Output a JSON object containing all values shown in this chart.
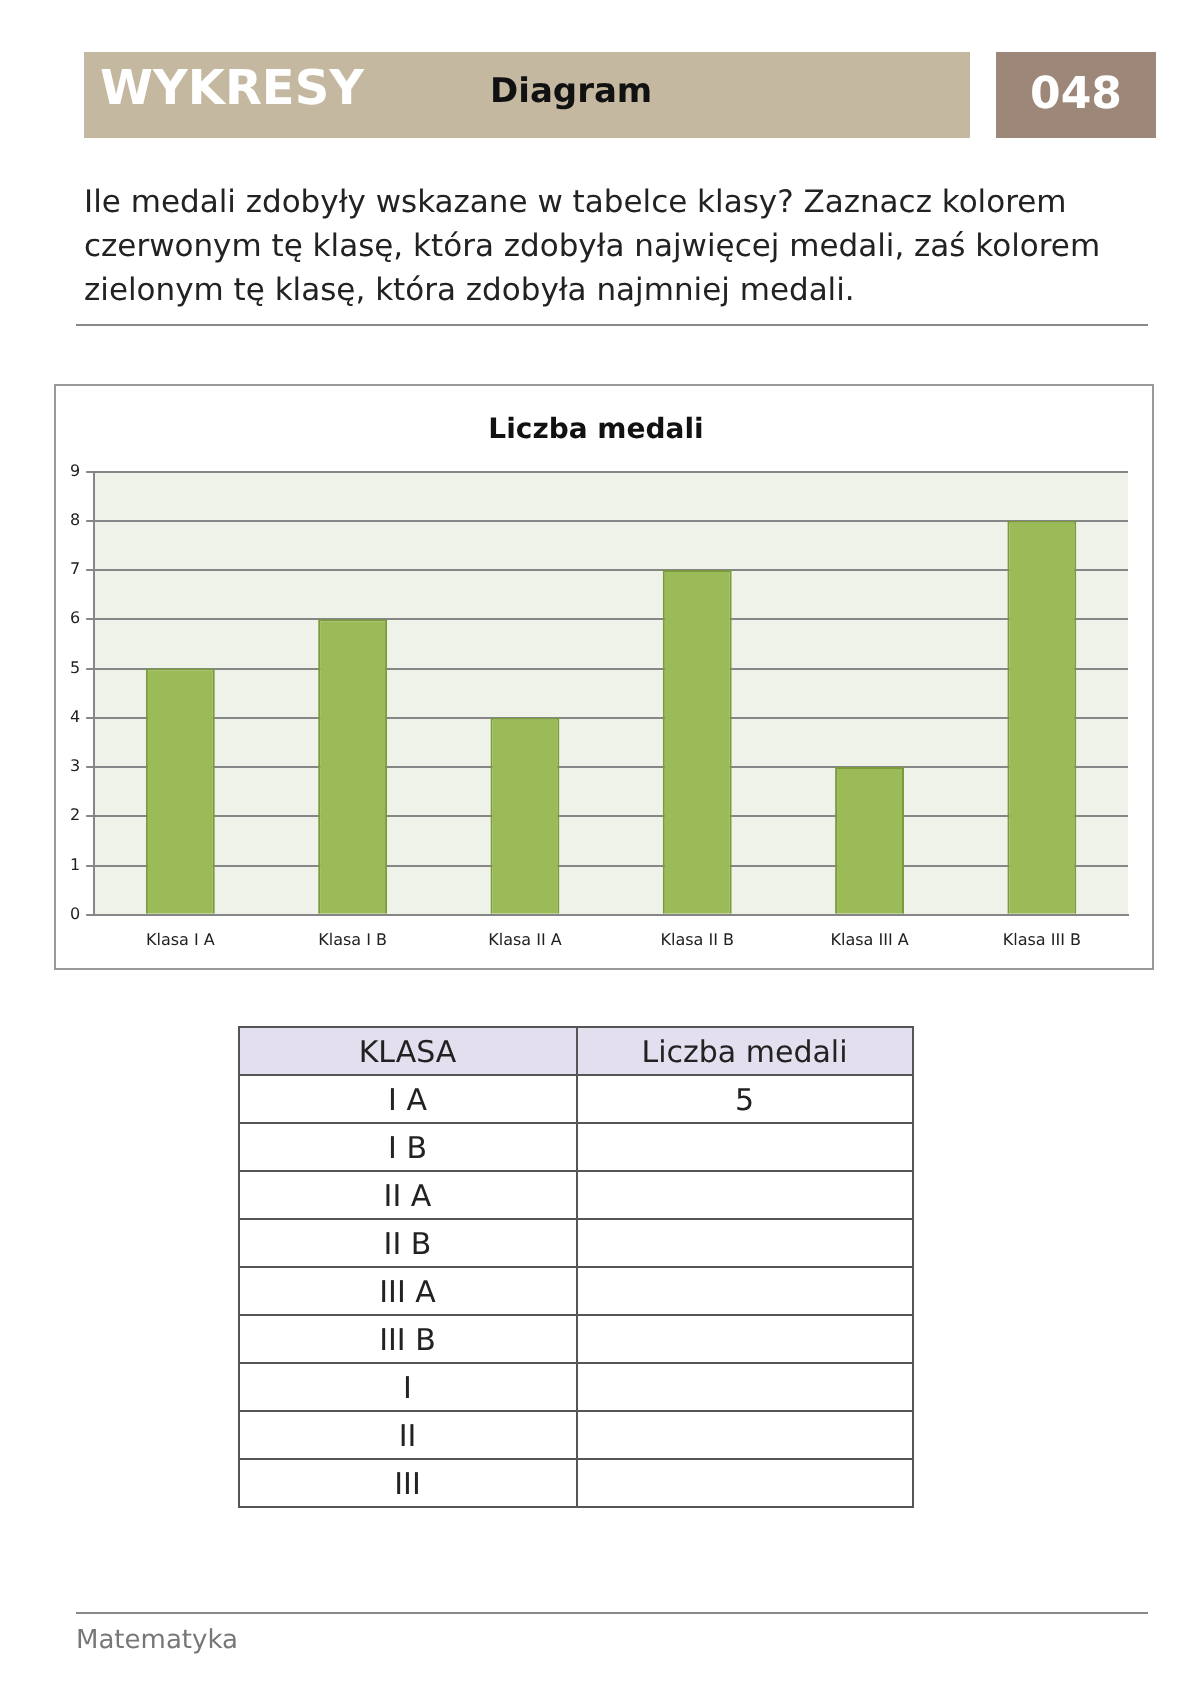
{
  "chart_data": [
    {
      "type": "other",
      "title": "WYKRESY",
      "subtitle": "Diagram",
      "annotations": [
        "048",
        "Ile medali zdobyły wskazane w tabelce klasy? Zaznacz kolorem czerwonym tę klasę, która zdobyła najwięcej medali, zaś kolorem zielonym tę klasę, która zdobyła najmniej medali."
      ]
    },
    {
      "type": "bar",
      "title": "Liczba medali",
      "categories": [
        "Klasa I A",
        "Klasa I B",
        "Klasa II A",
        "Klasa II B",
        "Klasa III A",
        "Klasa III B"
      ],
      "values": [
        5,
        6,
        4,
        7,
        3,
        8
      ],
      "color": "#9bbb59",
      "ylim": [
        0,
        9
      ],
      "yticks": [
        0,
        1,
        2,
        3,
        4,
        5,
        6,
        7,
        8,
        9
      ],
      "grid": "y",
      "legend": false
    },
    {
      "type": "other",
      "categories": [
        "I A",
        "I B",
        "II A",
        "II B",
        "III A",
        "III B",
        "I",
        "II",
        "III"
      ],
      "values": [
        5,
        null,
        null,
        null,
        null,
        null,
        null,
        null,
        null
      ],
      "data_labels": true,
      "annotations": [
        "KLASA",
        "Liczba medali",
        "Matematyka"
      ]
    }
  ]
}
